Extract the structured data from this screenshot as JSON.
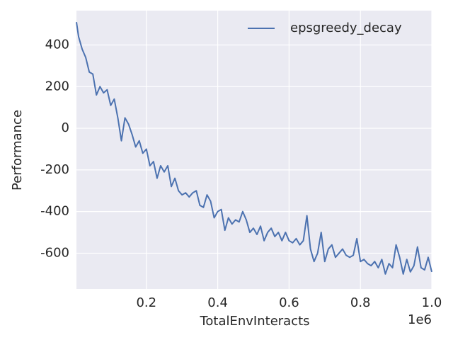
{
  "chart_data": {
    "type": "line",
    "xlabel": "TotalEnvInteracts",
    "ylabel": "Performance",
    "x_offset_label": "1e6",
    "legend": "upper right",
    "grid": true,
    "x": [
      4000,
      10000,
      20000,
      30000,
      40000,
      50000,
      60000,
      70000,
      80000,
      90000,
      100000,
      110000,
      120000,
      130000,
      140000,
      150000,
      160000,
      170000,
      180000,
      190000,
      200000,
      210000,
      220000,
      230000,
      240000,
      250000,
      260000,
      270000,
      280000,
      290000,
      300000,
      310000,
      320000,
      330000,
      340000,
      350000,
      360000,
      370000,
      380000,
      390000,
      400000,
      410000,
      420000,
      430000,
      440000,
      450000,
      460000,
      470000,
      480000,
      490000,
      500000,
      510000,
      520000,
      530000,
      540000,
      550000,
      560000,
      570000,
      580000,
      590000,
      600000,
      610000,
      620000,
      630000,
      640000,
      650000,
      660000,
      670000,
      680000,
      690000,
      700000,
      710000,
      720000,
      730000,
      740000,
      750000,
      760000,
      770000,
      780000,
      790000,
      800000,
      810000,
      820000,
      830000,
      840000,
      850000,
      860000,
      870000,
      880000,
      890000,
      900000,
      910000,
      920000,
      930000,
      940000,
      950000,
      960000,
      970000,
      980000,
      990000,
      1000000
    ],
    "series": [
      {
        "name": "epsgreedy_decay",
        "color": "#4c72b0",
        "values": [
          510,
          440,
          380,
          340,
          270,
          260,
          160,
          200,
          170,
          185,
          110,
          140,
          50,
          -60,
          50,
          20,
          -30,
          -90,
          -60,
          -120,
          -100,
          -180,
          -160,
          -240,
          -180,
          -210,
          -180,
          -280,
          -240,
          -300,
          -320,
          -310,
          -330,
          -310,
          -300,
          -370,
          -380,
          -320,
          -350,
          -430,
          -400,
          -390,
          -490,
          -430,
          -460,
          -440,
          -450,
          -400,
          -440,
          -500,
          -480,
          -510,
          -470,
          -540,
          -500,
          -480,
          -520,
          -500,
          -540,
          -500,
          -540,
          -550,
          -530,
          -560,
          -540,
          -420,
          -580,
          -640,
          -600,
          -500,
          -640,
          -580,
          -560,
          -620,
          -600,
          -580,
          -610,
          -620,
          -610,
          -530,
          -640,
          -630,
          -650,
          -660,
          -640,
          -670,
          -630,
          -700,
          -650,
          -670,
          -560,
          -620,
          -700,
          -630,
          -690,
          -660,
          -570,
          -670,
          -680,
          -620,
          -690
        ]
      }
    ],
    "xlim": [
      4000,
      1000000
    ],
    "xticks": [
      {
        "value": 200000,
        "label": "0.2"
      },
      {
        "value": 400000,
        "label": "0.4"
      },
      {
        "value": 600000,
        "label": "0.6"
      },
      {
        "value": 800000,
        "label": "0.8"
      },
      {
        "value": 1000000,
        "label": "1.0"
      }
    ],
    "ylim": [
      -772,
      565
    ],
    "yticks": [
      -600,
      -400,
      -200,
      0,
      200,
      400
    ]
  }
}
